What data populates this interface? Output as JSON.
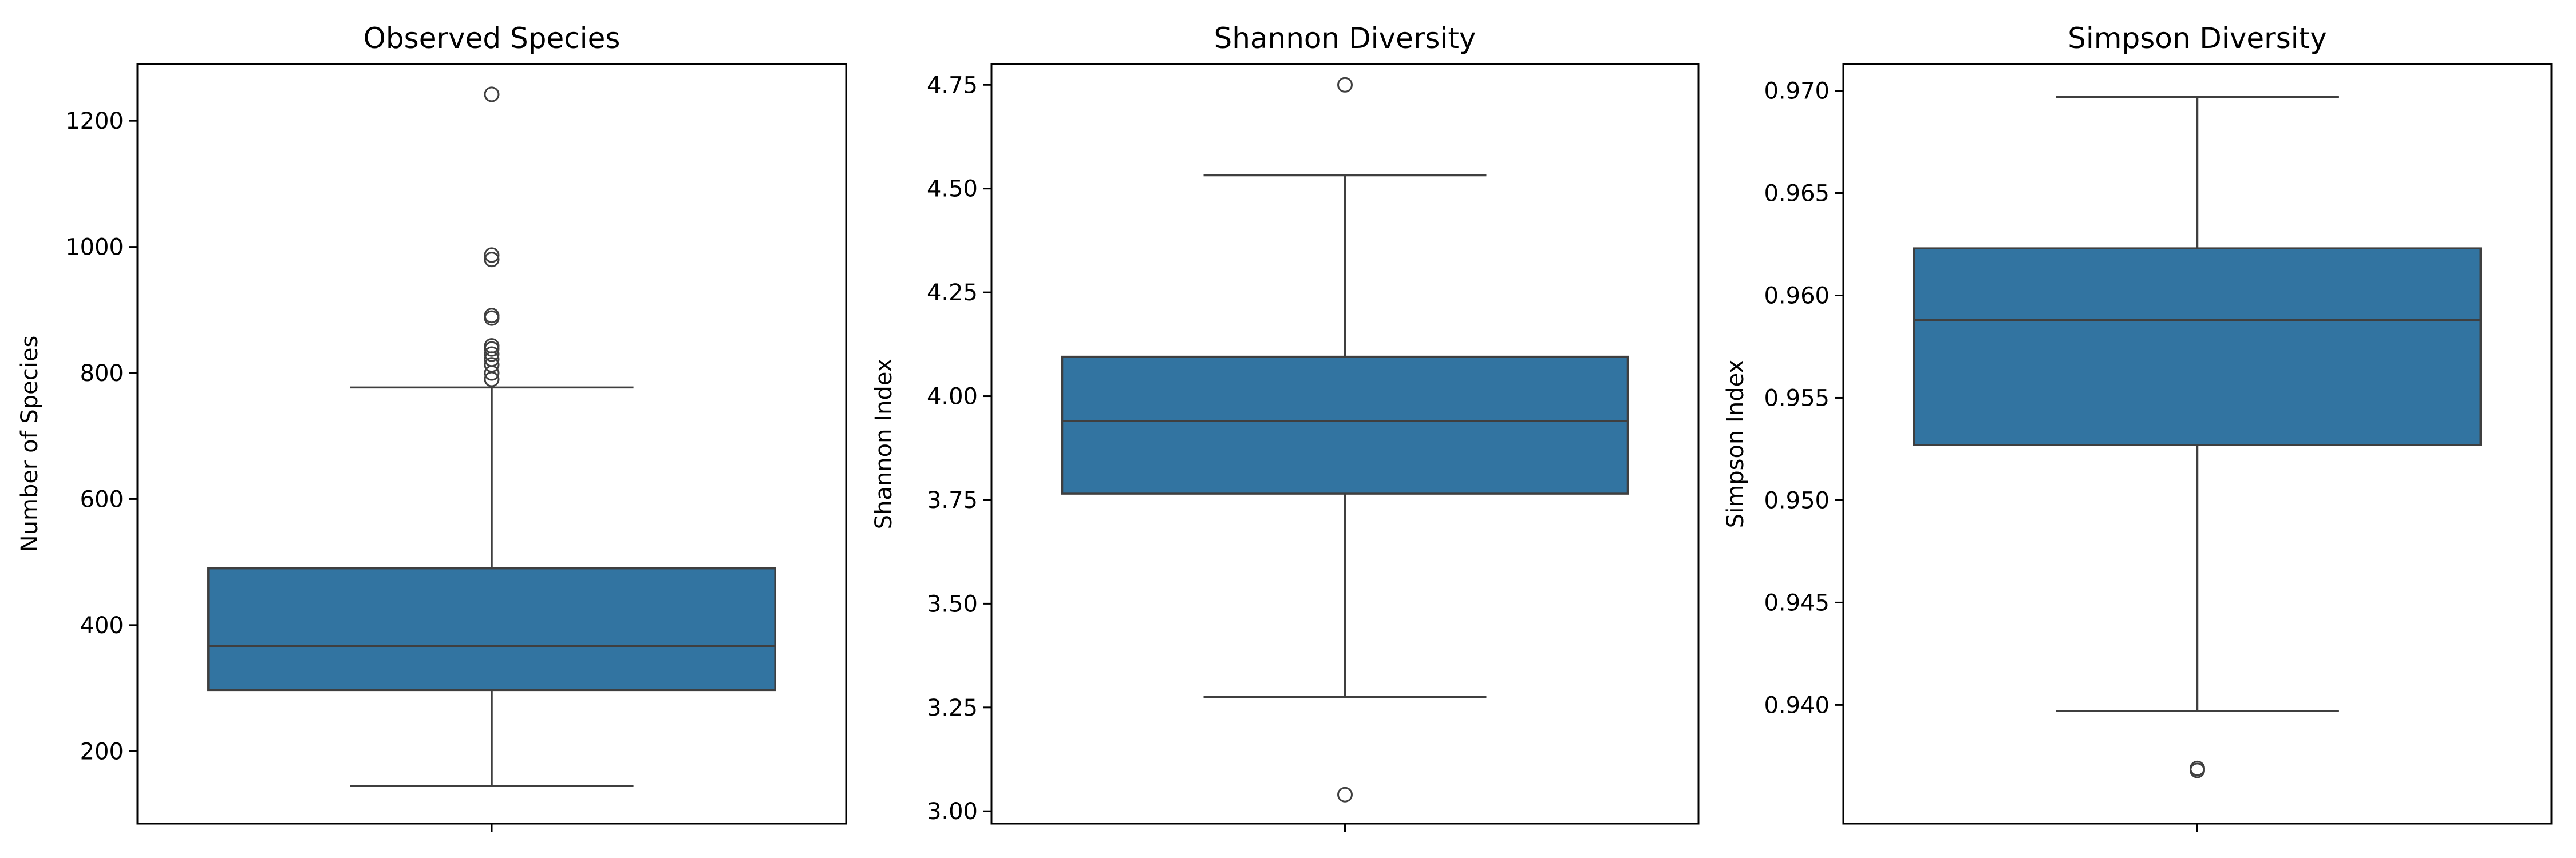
{
  "chart_data": [
    {
      "type": "box",
      "title": "Observed Species",
      "ylabel": "Number of Species",
      "xlabel": "",
      "ylim": [
        85,
        1290
      ],
      "yticks": [
        200,
        400,
        600,
        800,
        1000,
        1200
      ],
      "tick_decimals": 0,
      "box": {
        "whisker_low": 145,
        "q1": 297,
        "median": 367,
        "q3": 490,
        "whisker_high": 777
      },
      "outliers": [
        790,
        800,
        813,
        822,
        830,
        838,
        843,
        887,
        891,
        980,
        987,
        1242
      ]
    },
    {
      "type": "box",
      "title": "Shannon Diversity",
      "ylabel": "Shannon Index",
      "xlabel": "",
      "ylim": [
        2.97,
        4.8
      ],
      "yticks": [
        3.0,
        3.25,
        3.5,
        3.75,
        4.0,
        4.25,
        4.5,
        4.75
      ],
      "tick_decimals": 2,
      "box": {
        "whisker_low": 3.275,
        "q1": 3.765,
        "median": 3.94,
        "q3": 4.095,
        "whisker_high": 4.532
      },
      "outliers": [
        3.04,
        4.75
      ]
    },
    {
      "type": "box",
      "title": "Simpson Diversity",
      "ylabel": "Simpson Index",
      "xlabel": "",
      "ylim": [
        0.9342,
        0.9713
      ],
      "yticks": [
        0.94,
        0.945,
        0.95,
        0.955,
        0.96,
        0.965,
        0.97
      ],
      "tick_decimals": 3,
      "box": {
        "whisker_low": 0.9397,
        "q1": 0.9527,
        "median": 0.9588,
        "q3": 0.9623,
        "whisker_high": 0.9697
      },
      "outliers": [
        0.9368,
        0.9369
      ]
    }
  ],
  "colors": {
    "box_fill": "#3274a1",
    "line": "#3f3f3f",
    "frame": "#000000"
  }
}
